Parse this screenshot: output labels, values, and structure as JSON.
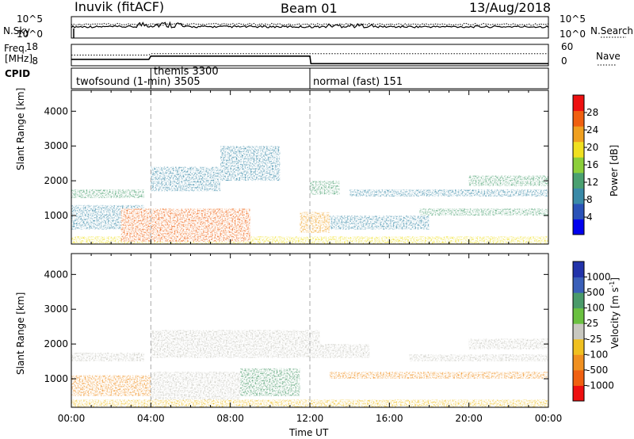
{
  "header": {
    "station": "Inuvik (fitACF)",
    "beam": "Beam 01",
    "date": "13/Aug/2018"
  },
  "side_labels": {
    "nsky": "N.Sky",
    "nsearch": "N.Search",
    "freq_line1": "Freq.",
    "freq_line2": "[MHz]",
    "nave": "Nave",
    "cpid": "CPID"
  },
  "mini_axes": {
    "nsky_ticks": [
      "10^5",
      "10^0"
    ],
    "nsearch_ticks": [
      "10^5",
      "10^0"
    ],
    "freq_ticks": [
      "18",
      "8"
    ],
    "nave_ticks": [
      "60",
      "0"
    ]
  },
  "cpid_segments": [
    {
      "label": "twofsound (1-min) 3505",
      "start": "00:00"
    },
    {
      "label": "themis 3300",
      "start": "04:00"
    },
    {
      "label": "normal (fast) 151",
      "start": "12:00"
    }
  ],
  "chart_data": [
    {
      "type": "heatmap",
      "panel": "power",
      "title": "",
      "xlabel": "",
      "ylabel": "Slant Range [km]",
      "x_range": [
        "00:00",
        "24:00"
      ],
      "ylim": [
        180,
        4600
      ],
      "y_ticks": [
        "1000",
        "2000",
        "3000",
        "4000"
      ],
      "colorbar": {
        "label": "Power [dB]",
        "ticks": [
          "4",
          "8",
          "12",
          "16",
          "20",
          "24",
          "28"
        ],
        "colors": [
          "#0000ee",
          "#2a52b8",
          "#3a8aa8",
          "#4aa070",
          "#8ccf3a",
          "#f0e020",
          "#f0a020",
          "#f06010",
          "#ee1010"
        ]
      },
      "grid": false,
      "dashed_lines_at": [
        "04:00",
        "12:00"
      ],
      "echo_bands": [
        {
          "time_start": "00:00",
          "time_end": "24:00",
          "range_start": 180,
          "range_end": 400,
          "power_db": 20
        },
        {
          "time_start": "00:00",
          "time_end": "03:40",
          "range_start": 1500,
          "range_end": 1750,
          "power_db": 10
        },
        {
          "time_start": "00:00",
          "time_end": "03:40",
          "range_start": 600,
          "range_end": 1300,
          "power_db": 9
        },
        {
          "time_start": "02:30",
          "time_end": "09:00",
          "range_start": 250,
          "range_end": 1200,
          "power_db": 28
        },
        {
          "time_start": "04:00",
          "time_end": "07:30",
          "range_start": 1700,
          "range_end": 2400,
          "power_db": 8
        },
        {
          "time_start": "07:30",
          "time_end": "10:30",
          "range_start": 2000,
          "range_end": 3000,
          "power_db": 6
        },
        {
          "time_start": "11:30",
          "time_end": "13:00",
          "range_start": 500,
          "range_end": 1100,
          "power_db": 24
        },
        {
          "time_start": "12:00",
          "time_end": "13:30",
          "range_start": 1600,
          "range_end": 2000,
          "power_db": 10
        },
        {
          "time_start": "14:00",
          "time_end": "24:00",
          "range_start": 1550,
          "range_end": 1750,
          "power_db": 9
        },
        {
          "time_start": "17:30",
          "time_end": "24:00",
          "range_start": 1000,
          "range_end": 1200,
          "power_db": 13
        },
        {
          "time_start": "20:00",
          "time_end": "24:00",
          "range_start": 1850,
          "range_end": 2150,
          "power_db": 10
        },
        {
          "time_start": "13:00",
          "time_end": "18:00",
          "range_start": 600,
          "range_end": 1000,
          "power_db": 8
        }
      ]
    },
    {
      "type": "heatmap",
      "panel": "velocity",
      "title": "",
      "xlabel": "Time UT",
      "ylabel": "Slant Range [km]",
      "x_range": [
        "00:00",
        "24:00"
      ],
      "x_ticks": [
        "00:00",
        "04:00",
        "08:00",
        "12:00",
        "16:00",
        "20:00",
        "00:00"
      ],
      "ylim": [
        180,
        4600
      ],
      "y_ticks": [
        "1000",
        "2000",
        "3000",
        "4000"
      ],
      "colorbar": {
        "label": "Velocity [m s^-1]",
        "ticks": [
          "1000",
          "500",
          "100",
          "25",
          "-25",
          "-100",
          "-500",
          "-1000"
        ],
        "colors": [
          "#2233aa",
          "#3a5fb8",
          "#4a9a6a",
          "#6ac040",
          "#c8c8c0",
          "#f0c020",
          "#f09020",
          "#f06010",
          "#ee1010"
        ]
      },
      "grid": false,
      "dashed_lines_at": [
        "04:00",
        "12:00"
      ],
      "echo_bands": [
        {
          "time_start": "00:00",
          "time_end": "03:40",
          "range_start": 1500,
          "range_end": 1750,
          "velocity": 0
        },
        {
          "time_start": "00:00",
          "time_end": "04:00",
          "range_start": 500,
          "range_end": 1100,
          "velocity": -300
        },
        {
          "time_start": "04:00",
          "time_end": "08:30",
          "range_start": 250,
          "range_end": 1200,
          "velocity": 0
        },
        {
          "time_start": "08:30",
          "time_end": "11:30",
          "range_start": 500,
          "range_end": 1300,
          "velocity": 200
        },
        {
          "time_start": "04:00",
          "time_end": "12:30",
          "range_start": 1600,
          "range_end": 2400,
          "velocity": 0
        },
        {
          "time_start": "12:00",
          "time_end": "15:00",
          "range_start": 1600,
          "range_end": 2000,
          "velocity": 0
        },
        {
          "time_start": "13:00",
          "time_end": "24:00",
          "range_start": 1000,
          "range_end": 1200,
          "velocity": -300
        },
        {
          "time_start": "17:00",
          "time_end": "24:00",
          "range_start": 1500,
          "range_end": 1700,
          "velocity": 0
        },
        {
          "time_start": "20:00",
          "time_end": "24:00",
          "range_start": 1850,
          "range_end": 2150,
          "velocity": 0
        },
        {
          "time_start": "00:00",
          "time_end": "24:00",
          "range_start": 180,
          "range_end": 400,
          "velocity": -50
        }
      ]
    },
    {
      "type": "line",
      "panel": "noise",
      "series": [
        {
          "name": "N.Sky"
        },
        {
          "name": "N.Search"
        }
      ]
    },
    {
      "type": "line",
      "panel": "frequency",
      "series": [
        {
          "name": "Freq.",
          "values_mhz": [
            [
              0,
              11
            ],
            [
              3.9,
              11
            ],
            [
              4.0,
              12.5
            ],
            [
              12.0,
              12.5
            ],
            [
              12.05,
              9
            ],
            [
              24,
              9
            ]
          ]
        },
        {
          "name": "Nave",
          "values": [
            [
              0,
              30
            ],
            [
              3.9,
              30
            ],
            [
              4.0,
              34
            ],
            [
              24,
              34
            ]
          ]
        }
      ]
    }
  ]
}
